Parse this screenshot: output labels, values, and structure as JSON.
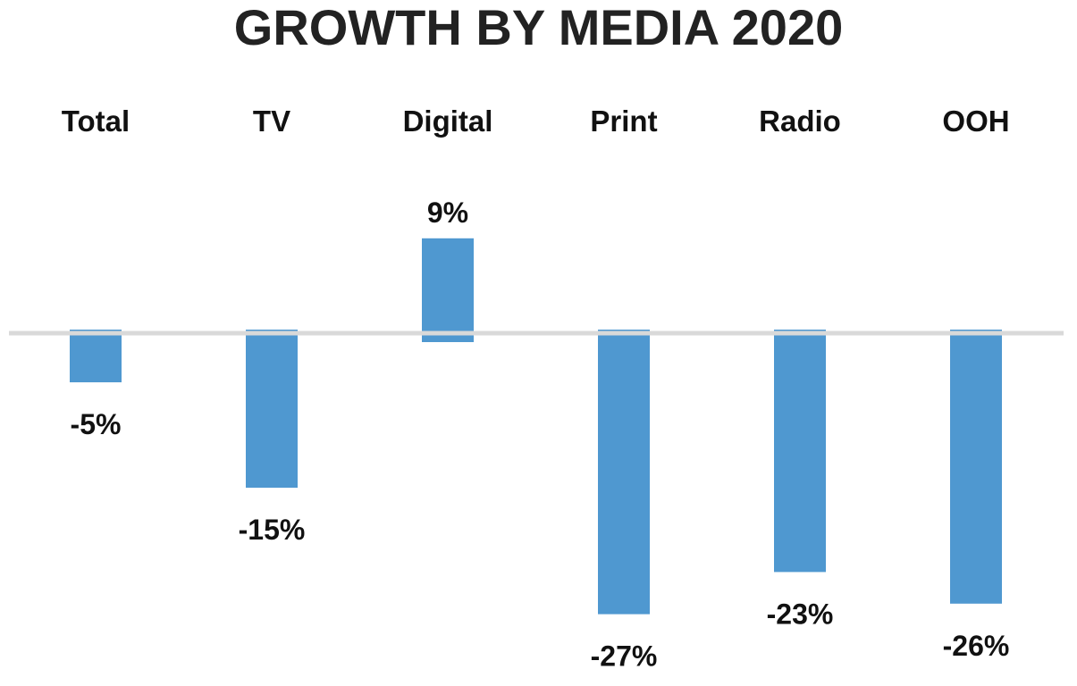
{
  "chart_data": {
    "type": "bar",
    "title": "GROWTH BY MEDIA 2020",
    "categories": [
      "Total",
      "TV",
      "Digital",
      "Print",
      "Radio",
      "OOH"
    ],
    "values": [
      -5,
      -15,
      9,
      -27,
      -23,
      -26
    ],
    "value_labels": [
      "-5%",
      "-15%",
      "9%",
      "-27%",
      "-23%",
      "-26%"
    ],
    "unit": "%",
    "category_axis_position": "top",
    "bar_color": "#4f98d0",
    "baseline_color": "#d9d9d9",
    "grid": false,
    "legend": "none"
  }
}
